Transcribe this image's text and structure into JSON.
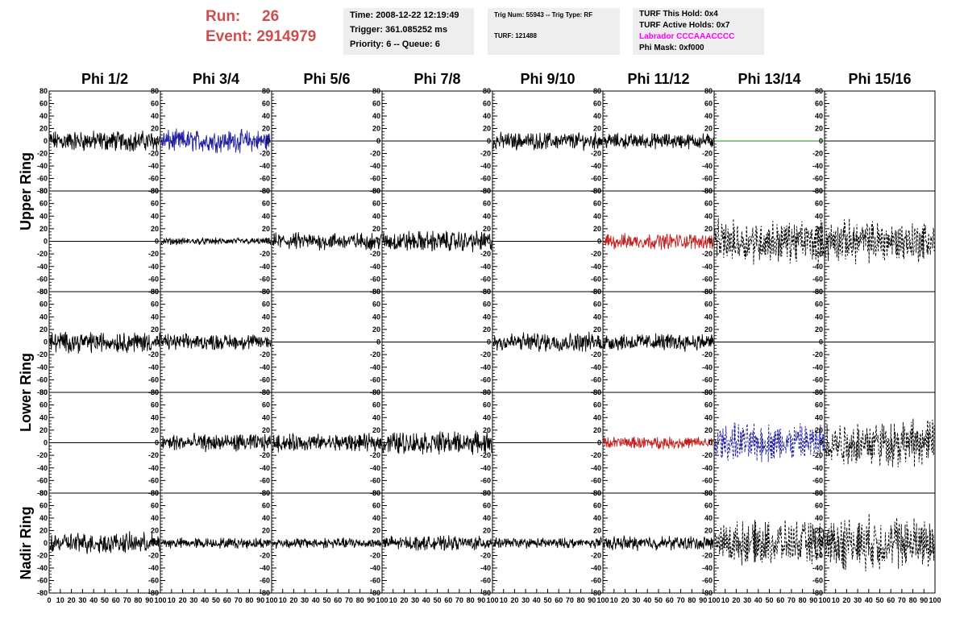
{
  "header": {
    "run_label": "Run:",
    "run_value": "26",
    "event_label": "Event:",
    "event_value": "2914979",
    "time": "Time: 2008-12-22 12:19:49",
    "trigger": "Trigger: 361.085252 ms",
    "priority": "Priority: 6 -- Queue: 6",
    "trig_num": "Trig Num: 55943 -- Trig Type: RF",
    "turf": "TURF: 121488",
    "turf_this_hold": "TURF This Hold: 0x4",
    "turf_active_holds": "TURF Active Holds: 0x7",
    "labrador": "Labrador CCCAAACCCC",
    "phi_mask": "Phi Mask: 0xf000"
  },
  "colors": {
    "run_text": "#cc4e4e",
    "labrador_text": "#ff00ff",
    "trace_black": "#000000",
    "trace_blue": "#1f1fa0",
    "trace_red": "#c42020",
    "trace_green": "#1a8a1a"
  },
  "chart_data": {
    "type": "line",
    "columns": [
      "Phi 1/2",
      "Phi 3/4",
      "Phi 5/6",
      "Phi 7/8",
      "Phi 9/10",
      "Phi 11/12",
      "Phi 13/14",
      "Phi 15/16"
    ],
    "row_groups": [
      {
        "label": "Upper Ring",
        "rows": [
          0,
          1
        ]
      },
      {
        "label": "Lower Ring",
        "rows": [
          2,
          3
        ]
      },
      {
        "label": "Nadir Ring",
        "rows": [
          4
        ]
      }
    ],
    "ylim": [
      -80,
      80
    ],
    "xlim": [
      0,
      100
    ],
    "y_ticks": [
      "-80",
      "-60",
      "-40",
      "-20",
      "0",
      "20",
      "40",
      "60",
      "80"
    ],
    "x_ticks_first": [
      "0",
      "10",
      "20",
      "30",
      "40",
      "50",
      "60",
      "70",
      "80",
      "90",
      "100"
    ],
    "x_ticks_other": [
      "10",
      "20",
      "30",
      "40",
      "50",
      "60",
      "70",
      "80",
      "90",
      "100"
    ],
    "grid": false,
    "traces": [
      [
        "noise:12",
        "noise:13:blue",
        "flat",
        "flat",
        "noise:10",
        "noise:9",
        "flat:green",
        "flat"
      ],
      [
        "flat",
        "noise:4",
        "noise:10",
        "noise:12",
        "flat",
        "noise:9:red",
        "dash:22",
        "dash:22"
      ],
      [
        "noise:12",
        "noise:9",
        "flat",
        "flat",
        "noise:11",
        "noise:10",
        "flat",
        "flat"
      ],
      [
        "flat",
        "noise:10",
        "noise:10",
        "noise:13",
        "flat",
        "noise:7:red",
        "dash:20:blue",
        "dash:24"
      ],
      [
        "noise:12",
        "noise:6",
        "noise:6",
        "noise:8",
        "noise:6",
        "noise:8",
        "dash:22",
        "dash:28"
      ]
    ]
  }
}
